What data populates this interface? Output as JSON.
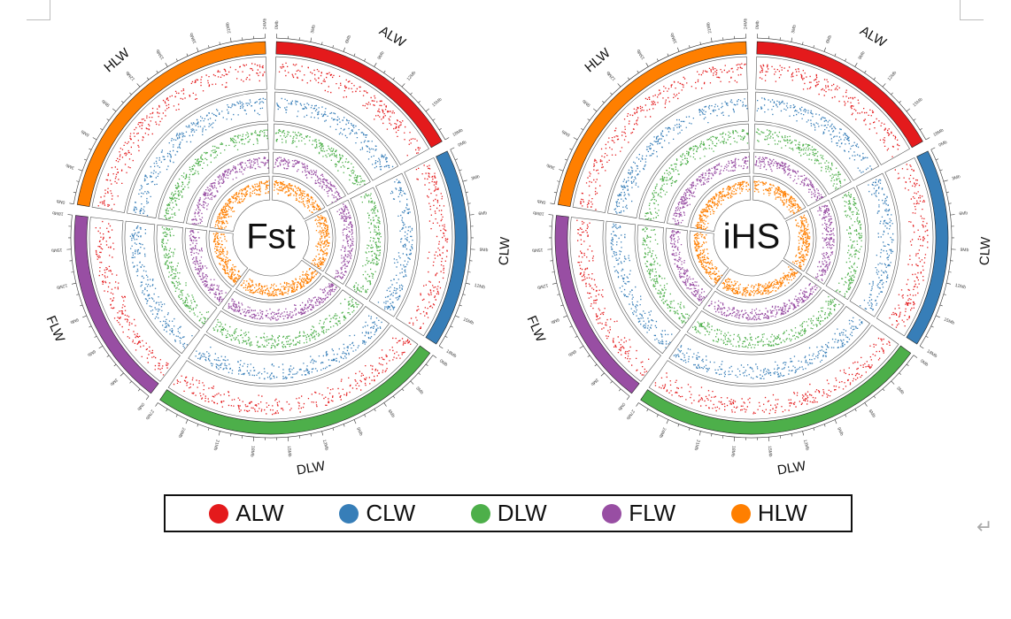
{
  "chart_data": [
    {
      "type": "circos",
      "center_label": "Fst",
      "chromosomes": [
        {
          "name": "ALW",
          "color": "#e41a1c",
          "length_mb": 18,
          "ticks": [
            "0Mb",
            "3Mb",
            "6Mb",
            "9Mb",
            "12Mb",
            "15Mb",
            "18Mb"
          ]
        },
        {
          "name": "CLW",
          "color": "#377eb8",
          "length_mb": 18,
          "ticks": [
            "0Mb",
            "3Mb",
            "6Mb",
            "9Mb",
            "12Mb",
            "15Mb",
            "18Mb"
          ]
        },
        {
          "name": "DLW",
          "color": "#4daf4a",
          "length_mb": 27,
          "ticks": [
            "0Mb",
            "3Mb",
            "6Mb",
            "9Mb",
            "12Mb",
            "15Mb",
            "18Mb",
            "21Mb",
            "24Mb",
            "27Mb"
          ]
        },
        {
          "name": "FLW",
          "color": "#984ea3",
          "length_mb": 18,
          "ticks": [
            "0Mb",
            "3Mb",
            "6Mb",
            "9Mb",
            "12Mb",
            "15Mb",
            "18Mb"
          ]
        },
        {
          "name": "HLW",
          "color": "#ff7f00",
          "length_mb": 24,
          "ticks": [
            "0Mb",
            "3Mb",
            "6Mb",
            "9Mb",
            "12Mb",
            "15Mb",
            "18Mb",
            "21Mb",
            "24Mb"
          ]
        }
      ],
      "tracks": [
        "ALW",
        "CLW",
        "DLW",
        "FLW",
        "HLW"
      ]
    },
    {
      "type": "circos",
      "center_label": "iHS",
      "chromosomes": [
        {
          "name": "ALW",
          "color": "#e41a1c",
          "length_mb": 18,
          "ticks": [
            "0Mb",
            "3Mb",
            "6Mb",
            "9Mb",
            "12Mb",
            "15Mb",
            "18Mb"
          ]
        },
        {
          "name": "CLW",
          "color": "#377eb8",
          "length_mb": 18,
          "ticks": [
            "0Mb",
            "3Mb",
            "6Mb",
            "9Mb",
            "12Mb",
            "15Mb",
            "18Mb"
          ]
        },
        {
          "name": "DLW",
          "color": "#4daf4a",
          "length_mb": 27,
          "ticks": [
            "0Mb",
            "3Mb",
            "6Mb",
            "9Mb",
            "12Mb",
            "15Mb",
            "18Mb",
            "21Mb",
            "24Mb",
            "27Mb"
          ]
        },
        {
          "name": "FLW",
          "color": "#984ea3",
          "length_mb": 18,
          "ticks": [
            "0Mb",
            "3Mb",
            "6Mb",
            "9Mb",
            "12Mb",
            "15Mb",
            "18Mb"
          ]
        },
        {
          "name": "HLW",
          "color": "#ff7f00",
          "length_mb": 24,
          "ticks": [
            "0Mb",
            "3Mb",
            "6Mb",
            "9Mb",
            "12Mb",
            "15Mb",
            "18Mb",
            "21Mb",
            "24Mb"
          ]
        }
      ],
      "tracks": [
        "ALW",
        "CLW",
        "DLW",
        "FLW",
        "HLW"
      ]
    }
  ],
  "legend": [
    {
      "label": "ALW",
      "color": "#e41a1c"
    },
    {
      "label": "CLW",
      "color": "#377eb8"
    },
    {
      "label": "DLW",
      "color": "#4daf4a"
    },
    {
      "label": "FLW",
      "color": "#984ea3"
    },
    {
      "label": "HLW",
      "color": "#ff7f00"
    }
  ],
  "return_glyph": "↵"
}
